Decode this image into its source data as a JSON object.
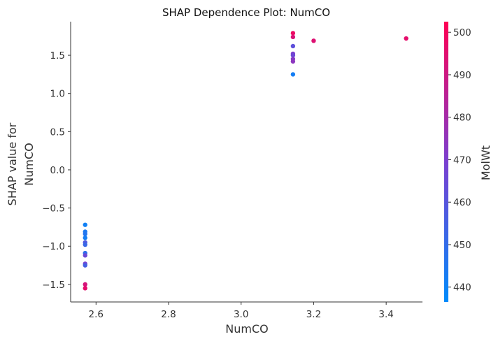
{
  "chart_data": {
    "type": "scatter",
    "title": "SHAP Dependence Plot: NumCO",
    "xlabel": "NumCO",
    "ylabel_lines": [
      "SHAP value for",
      "NumCO"
    ],
    "xlim": [
      2.53,
      3.5
    ],
    "ylim": [
      -1.73,
      1.94
    ],
    "xticks": [
      2.6,
      2.8,
      3.0,
      3.2,
      3.4
    ],
    "xtick_labels": [
      "2.6",
      "2.8",
      "3.0",
      "3.2",
      "3.4"
    ],
    "yticks": [
      -1.5,
      -1.0,
      -0.5,
      0.0,
      0.5,
      1.0,
      1.5
    ],
    "ytick_labels": [
      "−1.5",
      "−1.0",
      "−0.5",
      "0.0",
      "0.5",
      "1.0",
      "1.5"
    ],
    "colorbar": {
      "label": "MolWt",
      "range": [
        436.5,
        502.5
      ],
      "ticks": [
        440,
        450,
        460,
        470,
        480,
        490,
        500
      ],
      "tick_labels": [
        "440",
        "450",
        "460",
        "470",
        "480",
        "490",
        "500"
      ],
      "color_low": "#008bfb",
      "color_high": "#ff0052"
    },
    "points": [
      {
        "x": 2.57,
        "y": -0.72,
        "c": 441
      },
      {
        "x": 2.57,
        "y": -0.81,
        "c": 444
      },
      {
        "x": 2.57,
        "y": -0.84,
        "c": 446
      },
      {
        "x": 2.57,
        "y": -0.89,
        "c": 442
      },
      {
        "x": 2.57,
        "y": -0.95,
        "c": 458
      },
      {
        "x": 2.57,
        "y": -0.98,
        "c": 452
      },
      {
        "x": 2.57,
        "y": -1.09,
        "c": 449
      },
      {
        "x": 2.57,
        "y": -1.12,
        "c": 465
      },
      {
        "x": 2.57,
        "y": -1.23,
        "c": 468
      },
      {
        "x": 2.57,
        "y": -1.25,
        "c": 455
      },
      {
        "x": 2.57,
        "y": -1.5,
        "c": 492
      },
      {
        "x": 2.57,
        "y": -1.55,
        "c": 496
      },
      {
        "x": 3.143,
        "y": 1.79,
        "c": 498
      },
      {
        "x": 3.143,
        "y": 1.74,
        "c": 493
      },
      {
        "x": 3.143,
        "y": 1.62,
        "c": 462
      },
      {
        "x": 3.143,
        "y": 1.52,
        "c": 470
      },
      {
        "x": 3.143,
        "y": 1.5,
        "c": 466
      },
      {
        "x": 3.143,
        "y": 1.45,
        "c": 472
      },
      {
        "x": 3.143,
        "y": 1.42,
        "c": 474
      },
      {
        "x": 3.143,
        "y": 1.25,
        "c": 442
      },
      {
        "x": 3.2,
        "y": 1.69,
        "c": 494
      },
      {
        "x": 3.455,
        "y": 1.72,
        "c": 496
      }
    ]
  }
}
